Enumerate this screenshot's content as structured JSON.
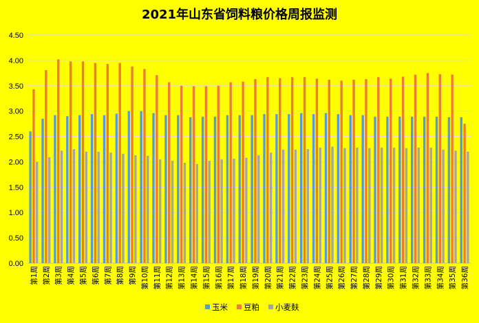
{
  "chart_data": {
    "type": "bar",
    "title": "2021年山东省饲料粮价格周报监测",
    "xlabel": "",
    "ylabel": "",
    "ylim": [
      0,
      4.5
    ],
    "yticks": [
      "0.00",
      "0.50",
      "1.00",
      "1.50",
      "2.00",
      "2.50",
      "3.00",
      "3.50",
      "4.00",
      "4.50"
    ],
    "grid": true,
    "legend_position": "bottom",
    "categories": [
      "第1周",
      "第2周",
      "第3周",
      "第4周",
      "第5周",
      "第6周",
      "第7周",
      "第8周",
      "第9周",
      "第10周",
      "第11周",
      "第12周",
      "第13周",
      "第14周",
      "第15周",
      "第16周",
      "第17周",
      "第18周",
      "第19周",
      "第20周",
      "第21周",
      "第22周",
      "第23周",
      "第24周",
      "第25周",
      "第26周",
      "第27周",
      "第28周",
      "第29周",
      "第30周",
      "第31周",
      "第32周",
      "第33周",
      "第34周",
      "第35周",
      "第36周"
    ],
    "series": [
      {
        "name": "玉米",
        "color": "#5B9BD5",
        "values": [
          2.6,
          2.85,
          2.92,
          2.9,
          2.92,
          2.94,
          2.92,
          2.95,
          3.0,
          3.0,
          2.96,
          2.92,
          2.92,
          2.88,
          2.89,
          2.89,
          2.92,
          2.92,
          2.92,
          2.94,
          2.94,
          2.94,
          2.96,
          2.94,
          2.96,
          2.94,
          2.92,
          2.92,
          2.89,
          2.89,
          2.89,
          2.89,
          2.89,
          2.89,
          2.88,
          2.88
        ]
      },
      {
        "name": "豆粕",
        "color": "#ED7D31",
        "values": [
          3.43,
          3.81,
          4.02,
          3.98,
          3.98,
          3.95,
          3.93,
          3.95,
          3.88,
          3.83,
          3.71,
          3.57,
          3.5,
          3.49,
          3.49,
          3.5,
          3.57,
          3.58,
          3.63,
          3.67,
          3.65,
          3.67,
          3.67,
          3.64,
          3.62,
          3.6,
          3.62,
          3.63,
          3.67,
          3.64,
          3.68,
          3.72,
          3.75,
          3.73,
          3.72,
          2.75
        ]
      },
      {
        "name": "小麦麸",
        "color": "#A5A5A5",
        "values": [
          2.0,
          2.09,
          2.22,
          2.25,
          2.2,
          2.2,
          2.18,
          2.16,
          2.13,
          2.12,
          2.05,
          2.02,
          1.98,
          1.96,
          2.02,
          2.05,
          2.06,
          2.08,
          2.13,
          2.18,
          2.24,
          2.24,
          2.25,
          2.28,
          2.3,
          2.27,
          2.28,
          2.27,
          2.28,
          2.28,
          2.27,
          2.28,
          2.28,
          2.24,
          2.22,
          2.2
        ]
      }
    ]
  }
}
